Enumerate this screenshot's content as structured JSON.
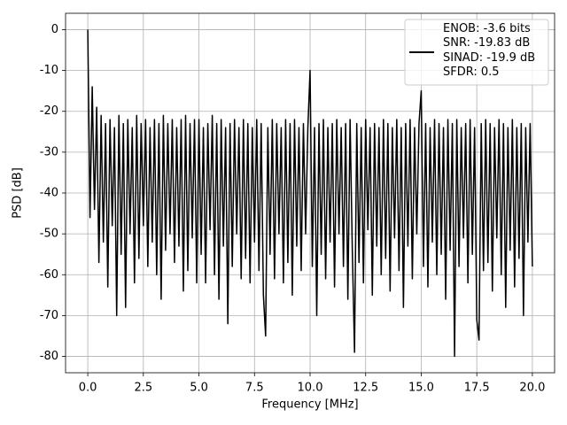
{
  "chart_data": {
    "type": "line",
    "xlabel": "Frequency [MHz]",
    "ylabel": "PSD [dB]",
    "x": [
      0,
      0.1,
      0.2,
      0.3,
      0.4,
      0.5,
      0.6,
      0.7,
      0.8,
      0.9,
      1,
      1.1,
      1.2,
      1.3,
      1.4,
      1.5,
      1.6,
      1.7,
      1.8,
      1.9,
      2,
      2.1,
      2.2,
      2.3,
      2.4,
      2.5,
      2.6,
      2.7,
      2.8,
      2.9,
      3,
      3.1,
      3.2,
      3.3,
      3.4,
      3.5,
      3.6,
      3.7,
      3.8,
      3.9,
      4,
      4.1,
      4.2,
      4.3,
      4.4,
      4.5,
      4.6,
      4.7,
      4.8,
      4.9,
      5,
      5.1,
      5.2,
      5.3,
      5.4,
      5.5,
      5.6,
      5.7,
      5.8,
      5.9,
      6,
      6.1,
      6.2,
      6.3,
      6.4,
      6.5,
      6.6,
      6.7,
      6.8,
      6.9,
      7,
      7.1,
      7.2,
      7.3,
      7.4,
      7.5,
      7.6,
      7.7,
      7.8,
      7.9,
      8,
      8.1,
      8.2,
      8.3,
      8.4,
      8.5,
      8.6,
      8.7,
      8.8,
      8.9,
      9,
      9.1,
      9.2,
      9.3,
      9.4,
      9.5,
      9.6,
      9.7,
      9.8,
      9.9,
      10,
      10.1,
      10.2,
      10.3,
      10.4,
      10.5,
      10.6,
      10.7,
      10.8,
      10.9,
      11,
      11.1,
      11.2,
      11.3,
      11.4,
      11.5,
      11.6,
      11.7,
      11.8,
      11.9,
      12,
      12.1,
      12.2,
      12.3,
      12.4,
      12.5,
      12.6,
      12.7,
      12.8,
      12.9,
      13,
      13.1,
      13.2,
      13.3,
      13.4,
      13.5,
      13.6,
      13.7,
      13.8,
      13.9,
      14,
      14.1,
      14.2,
      14.3,
      14.4,
      14.5,
      14.6,
      14.7,
      14.8,
      14.9,
      15,
      15.1,
      15.2,
      15.3,
      15.4,
      15.5,
      15.6,
      15.7,
      15.8,
      15.9,
      16,
      16.1,
      16.2,
      16.3,
      16.4,
      16.5,
      16.6,
      16.7,
      16.8,
      16.9,
      17,
      17.1,
      17.2,
      17.3,
      17.4,
      17.5,
      17.6,
      17.7,
      17.8,
      17.9,
      18,
      18.1,
      18.2,
      18.3,
      18.4,
      18.5,
      18.6,
      18.7,
      18.8,
      18.9,
      19,
      19.1,
      19.2,
      19.3,
      19.4,
      19.5,
      19.6,
      19.7,
      19.8,
      19.9,
      20
    ],
    "series": [
      {
        "name": "ENOB: -3.6 bits\nSNR: -19.83 dB\nSINAD: -19.9 dB\nSFDR: 0.5",
        "color": "#000000",
        "values": [
          0,
          -46,
          -14,
          -44,
          -19,
          -57,
          -21,
          -52,
          -23,
          -63,
          -22,
          -48,
          -24,
          -70,
          -21,
          -55,
          -23,
          -68,
          -22,
          -50,
          -24,
          -62,
          -21,
          -56,
          -23,
          -48,
          -22,
          -58,
          -24,
          -52,
          -22,
          -60,
          -23,
          -66,
          -21,
          -54,
          -23,
          -50,
          -22,
          -57,
          -24,
          -53,
          -22,
          -64,
          -21,
          -59,
          -23,
          -51,
          -22,
          -62,
          -22,
          -55,
          -24,
          -62,
          -23,
          -49,
          -21,
          -60,
          -23,
          -66,
          -22,
          -53,
          -24,
          -72,
          -23,
          -58,
          -22,
          -50,
          -24,
          -61,
          -22,
          -56,
          -23,
          -62,
          -24,
          -52,
          -22,
          -59,
          -23,
          -65,
          -75,
          -24,
          -55,
          -22,
          -61,
          -23,
          -50,
          -24,
          -62,
          -22,
          -57,
          -23,
          -65,
          -22,
          -53,
          -24,
          -59,
          -23,
          -50,
          -24,
          -10,
          -58,
          -24,
          -70,
          -23,
          -55,
          -22,
          -61,
          -24,
          -52,
          -23,
          -63,
          -22,
          -50,
          -24,
          -58,
          -23,
          -66,
          -22,
          -54,
          -79,
          -23,
          -57,
          -24,
          -62,
          -22,
          -49,
          -24,
          -65,
          -23,
          -53,
          -24,
          -60,
          -22,
          -56,
          -23,
          -64,
          -24,
          -51,
          -22,
          -59,
          -24,
          -68,
          -23,
          -53,
          -22,
          -61,
          -24,
          -50,
          -23,
          -15,
          -58,
          -23,
          -63,
          -24,
          -52,
          -22,
          -60,
          -23,
          -55,
          -24,
          -66,
          -22,
          -54,
          -23,
          -80,
          -22,
          -58,
          -24,
          -51,
          -23,
          -62,
          -22,
          -55,
          -24,
          -71,
          -76,
          -23,
          -59,
          -22,
          -57,
          -23,
          -64,
          -24,
          -51,
          -22,
          -60,
          -23,
          -68,
          -24,
          -54,
          -22,
          -63,
          -24,
          -56,
          -23,
          -70,
          -24,
          -52,
          -23,
          -58
        ]
      }
    ],
    "xlim": [
      -1.0,
      21.0
    ],
    "xticks": [
      {
        "value": 0,
        "label": "0.0"
      },
      2.5,
      {
        "value": 5,
        "label": "5.0"
      },
      7.5,
      {
        "value": 10,
        "label": "10.0"
      },
      12.5,
      {
        "value": 15,
        "label": "15.0"
      },
      17.5,
      {
        "value": 20,
        "label": "20.0"
      }
    ],
    "ylim": [
      -84,
      4
    ],
    "yticks": [
      0,
      -10,
      -20,
      -30,
      -40,
      -50,
      -60,
      -70,
      -80
    ],
    "grid": true,
    "legend": "upper right"
  }
}
